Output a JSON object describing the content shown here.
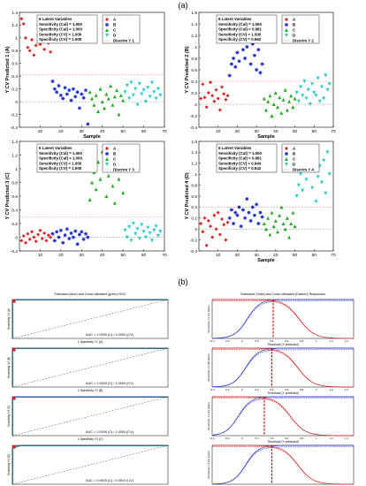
{
  "panel_a_label": "(a)",
  "panel_b_label": "(b)",
  "colors": {
    "A": "#dd2222",
    "B": "#2233cc",
    "C": "#22aa22",
    "D": "#22cccc",
    "discrim": "#ee8888",
    "zero": "#888888"
  },
  "chart_data": [
    {
      "type": "scatter",
      "ylabel": "Y CV Predicted 1 (A)",
      "xlabel": "Sample",
      "xlim": [
        0,
        70
      ],
      "ylim": [
        -0.4,
        1.4
      ],
      "yticks": [
        "1.4",
        "1.2",
        "1",
        "0.8",
        "0.6",
        "0.4",
        "0.2",
        "0",
        "-0.2",
        "-0.4"
      ],
      "xticks": [
        "10",
        "20",
        "30",
        "40",
        "50",
        "60",
        "70"
      ],
      "legend_lines": [
        "6 Latent Variables",
        "Sensitivity (Cal) = 1.000",
        "Specificity (Cal) = 1.000",
        "Sensitivity (CV) = 1.000",
        "Specificity (CV) = 1.000"
      ],
      "legend_items": [
        "A",
        "B",
        "C",
        "D",
        "Discrim Y 1"
      ],
      "threshold": 0.42,
      "series": [
        {
          "name": "A",
          "color": "#dd2222",
          "x": [
            1,
            2,
            3,
            4,
            5,
            6,
            7,
            8,
            9,
            10,
            11,
            12,
            13,
            14,
            15
          ],
          "y": [
            1.3,
            1.22,
            1.0,
            0.85,
            0.8,
            0.97,
            0.73,
            0.88,
            1.05,
            0.9,
            0.95,
            0.82,
            1.02,
            0.92,
            0.78
          ]
        },
        {
          "name": "B",
          "color": "#2233cc",
          "x": [
            16,
            17,
            18,
            19,
            20,
            21,
            22,
            23,
            24,
            25,
            26,
            27,
            28,
            29,
            30,
            31,
            32,
            33
          ],
          "y": [
            0.32,
            0.2,
            0.15,
            0.25,
            0.1,
            0.05,
            0.22,
            0.12,
            0.18,
            0.02,
            0.2,
            0.08,
            0.15,
            -0.1,
            0.12,
            0.06,
            0.18,
            -0.35
          ]
        },
        {
          "name": "C",
          "color": "#22aa22",
          "x": [
            34,
            35,
            36,
            37,
            38,
            39,
            40,
            41,
            42,
            43,
            44,
            45,
            46,
            47,
            48,
            49,
            50
          ],
          "y": [
            0.15,
            0.05,
            -0.05,
            0.1,
            -0.15,
            0.2,
            0.0,
            -0.1,
            0.12,
            0.05,
            0.25,
            -0.05,
            0.08,
            0.18,
            -0.2,
            0.1,
            0.02
          ]
        },
        {
          "name": "D",
          "color": "#22cccc",
          "x": [
            51,
            52,
            53,
            54,
            55,
            56,
            57,
            58,
            59,
            60,
            61,
            62,
            63,
            64,
            65,
            66,
            67,
            68
          ],
          "y": [
            0.15,
            0.25,
            0.05,
            0.3,
            0.1,
            0.2,
            -0.05,
            0.28,
            0.12,
            0.18,
            0.0,
            0.22,
            0.08,
            0.3,
            0.15,
            0.05,
            0.2,
            0.1
          ]
        }
      ]
    },
    {
      "type": "scatter",
      "ylabel": "Y CV Predicted 2 (B)",
      "xlabel": "Sample",
      "xlim": [
        0,
        70
      ],
      "ylim": [
        -0.4,
        1.6
      ],
      "yticks": [
        "1.6",
        "1.4",
        "1.2",
        "1",
        "0.8",
        "0.6",
        "0.4",
        "0.2",
        "0",
        "-0.2",
        "-0.4"
      ],
      "xticks": [
        "10",
        "20",
        "30",
        "40",
        "50",
        "60",
        "70"
      ],
      "legend_lines": [
        "6 Latent Variables",
        "Sensitivity (Cal) = 1.000",
        "Specificity (Cal) = 0.981",
        "Sensitivity (CV) = 1.000",
        "Specificity (CV) = 0.962"
      ],
      "legend_items": [
        "A",
        "B",
        "C",
        "D",
        "Discrim Y 2"
      ],
      "threshold": 0.4,
      "series": [
        {
          "name": "A",
          "color": "#dd2222",
          "x": [
            1,
            2,
            3,
            4,
            5,
            6,
            7,
            8,
            9,
            10,
            11,
            12,
            13,
            14,
            15
          ],
          "y": [
            0.1,
            0.35,
            0.12,
            -0.05,
            0.2,
            0.38,
            0.15,
            0.05,
            0.25,
            0.1,
            -0.1,
            0.3,
            0.18,
            0.08,
            0.15
          ]
        },
        {
          "name": "B",
          "color": "#2233cc",
          "x": [
            16,
            17,
            18,
            19,
            20,
            21,
            22,
            23,
            24,
            25,
            26,
            27,
            28,
            29,
            30,
            31,
            32,
            33
          ],
          "y": [
            0.5,
            0.7,
            0.8,
            0.65,
            0.9,
            0.75,
            1.1,
            0.95,
            0.8,
            1.0,
            1.5,
            0.7,
            1.05,
            0.85,
            0.6,
            0.95,
            0.55,
            0.7
          ]
        },
        {
          "name": "C",
          "color": "#22aa22",
          "x": [
            34,
            35,
            36,
            37,
            38,
            39,
            40,
            41,
            42,
            43,
            44,
            45,
            46,
            47,
            48,
            49,
            50
          ],
          "y": [
            0.1,
            -0.1,
            0.05,
            0.15,
            -0.2,
            0.0,
            0.2,
            -0.05,
            0.12,
            -0.15,
            0.08,
            0.25,
            -0.1,
            0.05,
            0.15,
            -0.05,
            0.1
          ]
        },
        {
          "name": "D",
          "color": "#22cccc",
          "x": [
            51,
            52,
            53,
            54,
            55,
            56,
            57,
            58,
            59,
            60,
            61,
            62,
            63,
            64,
            65,
            66,
            67,
            68
          ],
          "y": [
            0.2,
            0.05,
            0.3,
            0.15,
            0.4,
            0.1,
            0.25,
            0.0,
            0.35,
            0.2,
            0.15,
            0.45,
            0.05,
            0.3,
            0.1,
            0.5,
            0.25,
            0.35
          ]
        }
      ]
    },
    {
      "type": "scatter",
      "ylabel": "Y CV Predicted 3 (C)",
      "xlabel": "",
      "xlim": [
        0,
        70
      ],
      "ylim": [
        -0.2,
        1.4
      ],
      "yticks": [
        "1.4",
        "1.2",
        "1",
        "0.8",
        "0.6",
        "0.4",
        "0.2",
        "0",
        "-0.2"
      ],
      "xticks": [
        "10",
        "20",
        "30",
        "40",
        "50",
        "60",
        "70"
      ],
      "legend_lines": [
        "6 Latent Variables",
        "Sensitivity (Cal) = 1.000",
        "Specificity (Cal) = 1.000",
        "Sensitivity (CV) = 1.000",
        "Specificity (CV) = 1.000"
      ],
      "legend_items": [
        "A",
        "B",
        "C",
        "D",
        "Discrim Y 3"
      ],
      "threshold": 0.3,
      "series": [
        {
          "name": "A",
          "color": "#dd2222",
          "x": [
            1,
            2,
            3,
            4,
            5,
            6,
            7,
            8,
            9,
            10,
            11,
            12,
            13,
            14,
            15
          ],
          "y": [
            -0.05,
            0.02,
            -0.08,
            0.05,
            -0.03,
            0.08,
            0.0,
            -0.06,
            0.04,
            0.1,
            -0.02,
            0.06,
            -0.05,
            0.03,
            0.0
          ]
        },
        {
          "name": "B",
          "color": "#2233cc",
          "x": [
            16,
            17,
            18,
            19,
            20,
            21,
            22,
            23,
            24,
            25,
            26,
            27,
            28,
            29,
            30,
            31,
            32,
            33
          ],
          "y": [
            0.05,
            -0.05,
            0.08,
            0.0,
            0.1,
            -0.08,
            0.03,
            0.12,
            -0.02,
            0.06,
            0.0,
            0.09,
            -0.1,
            0.04,
            0.08,
            -0.03,
            0.05,
            0.0
          ]
        },
        {
          "name": "C",
          "color": "#22aa22",
          "x": [
            34,
            35,
            36,
            37,
            38,
            39,
            40,
            41,
            42,
            43,
            44,
            45,
            46,
            47,
            48,
            49,
            50
          ],
          "y": [
            0.55,
            0.8,
            0.95,
            0.7,
            1.1,
            0.85,
            1.25,
            1.0,
            0.6,
            0.9,
            1.15,
            0.75,
            0.5,
            1.05,
            0.85,
            1.2,
            0.65
          ]
        },
        {
          "name": "D",
          "color": "#22cccc",
          "x": [
            51,
            52,
            53,
            54,
            55,
            56,
            57,
            58,
            59,
            60,
            61,
            62,
            63,
            64,
            65,
            66,
            67,
            68
          ],
          "y": [
            0.1,
            0.0,
            0.15,
            -0.05,
            0.2,
            0.05,
            0.12,
            -0.02,
            0.18,
            0.08,
            0.0,
            0.14,
            0.06,
            -0.05,
            0.1,
            0.16,
            0.02,
            0.08
          ]
        }
      ]
    },
    {
      "type": "scatter",
      "ylabel": "Y CV Predicted 4 (D)",
      "xlabel": "Sample",
      "xlim": [
        0,
        70
      ],
      "ylim": [
        -0.4,
        1.6
      ],
      "yticks": [
        "1.6",
        "1.4",
        "1.2",
        "1",
        "0.8",
        "0.6",
        "0.4",
        "0.2",
        "0",
        "-0.2",
        "-0.4"
      ],
      "xticks": [
        "10",
        "20",
        "30",
        "40",
        "50",
        "60",
        "70"
      ],
      "legend_lines": [
        "6 Latent Variables",
        "Sensitivity (Cal) = 1.000",
        "Specificity (Cal) = 0.981",
        "Sensitivity (CV) = 0.944",
        "Specificity (CV) = 0.942"
      ],
      "legend_items": [
        "A",
        "B",
        "C",
        "D",
        "Discrim Y 4"
      ],
      "threshold": 0.4,
      "series": [
        {
          "name": "A",
          "color": "#dd2222",
          "x": [
            1,
            2,
            3,
            4,
            5,
            6,
            7,
            8,
            9,
            10,
            11,
            12,
            13,
            14,
            15
          ],
          "y": [
            0.1,
            -0.05,
            0.2,
            -0.3,
            0.15,
            0.05,
            -0.15,
            0.25,
            0.0,
            0.3,
            -0.1,
            0.18,
            0.08,
            -0.2,
            0.12
          ]
        },
        {
          "name": "B",
          "color": "#2233cc",
          "x": [
            16,
            17,
            18,
            19,
            20,
            21,
            22,
            23,
            24,
            25,
            26,
            27,
            28,
            29,
            30,
            31,
            32,
            33
          ],
          "y": [
            0.2,
            0.35,
            0.1,
            0.3,
            0.25,
            0.4,
            0.05,
            0.35,
            0.2,
            0.55,
            0.3,
            0.15,
            0.4,
            0.25,
            0.45,
            0.1,
            0.3,
            0.22
          ]
        },
        {
          "name": "C",
          "color": "#22aa22",
          "x": [
            34,
            35,
            36,
            37,
            38,
            39,
            40,
            41,
            42,
            43,
            44,
            45,
            46,
            47,
            48,
            49,
            50
          ],
          "y": [
            0.1,
            0.0,
            0.2,
            -0.1,
            0.3,
            0.05,
            0.15,
            -0.05,
            0.25,
            0.4,
            0.1,
            0.0,
            0.2,
            -0.15,
            0.1,
            0.3,
            0.05
          ]
        },
        {
          "name": "D",
          "color": "#22cccc",
          "x": [
            51,
            52,
            53,
            54,
            55,
            56,
            57,
            58,
            59,
            60,
            61,
            62,
            63,
            64,
            65,
            66,
            67,
            68
          ],
          "y": [
            0.6,
            0.8,
            1.0,
            0.7,
            1.2,
            0.9,
            1.1,
            1.3,
            0.75,
            1.05,
            0.5,
            0.95,
            1.15,
            0.85,
            1.25,
            0.65,
            1.4,
            1.0
          ]
        }
      ]
    }
  ],
  "panel_b": {
    "roc_title": "Estimated (blue) and Cross-Validated (green) ROC",
    "thr_title": "Estimated (Solid) and Cross-Validated (Dashed) Responses",
    "roc_xlabels": [
      "1-Specificity Y1 (A)",
      "1-Specificity Y2 (B)",
      "1-Specificity Y3 (C)",
      "1-Specificity Y4 (D)"
    ],
    "roc_ylabels": [
      "Sensitivity Y1 (A)",
      "Sensitivity Y2 (B)",
      "Sensitivity Y3 (C)",
      "Sensitivity Y4 (D)"
    ],
    "auc": [
      "AUC = 1.0000 (C) / 1.0000 (CV)",
      "AUC = 1.0000 (C) / 1.0000 (CV)",
      "AUC = 1.0000 (C) / 1.0000 (CV)",
      "AUC = 0.9923 (C) / 0.9910 (CV)"
    ],
    "thr_xlabel": "Threshold (Y predicted)",
    "thr_ylabels": [
      "Sensitivity Y1 (A) (blue)",
      "Sensitivity Y2 (B) (blue)",
      "Sensitivity Y3 (C) (blue)",
      "Sensitivity Y4 (D) (blue)"
    ],
    "thr_xticks": [
      "-0.4",
      "-0.2",
      "0",
      "0.2",
      "0.4",
      "0.6",
      "0.8",
      "1",
      "1.2",
      "1.4"
    ],
    "thresholds": [
      0.42,
      0.4,
      0.3,
      0.4
    ]
  }
}
